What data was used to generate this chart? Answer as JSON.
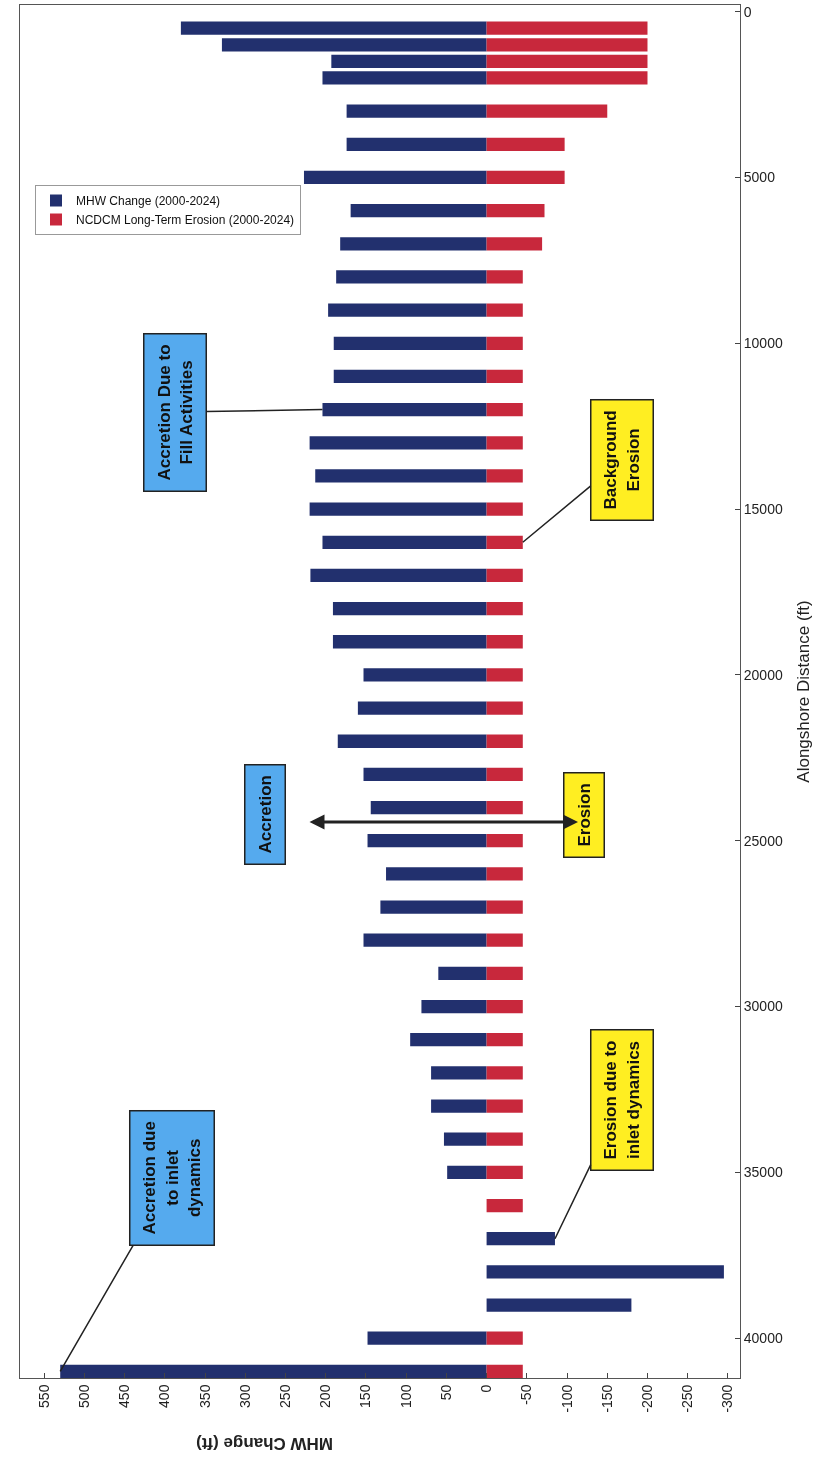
{
  "chart_data": {
    "type": "bar",
    "orientation": "horizontal",
    "stacked": true,
    "xlabel": "MHW Change (ft)",
    "ylabel": "Alongshore Distance (ft)",
    "x": [
      500,
      1000,
      1500,
      2000,
      3000,
      4000,
      5000,
      6000,
      7000,
      8000,
      9000,
      10000,
      11000,
      12000,
      13000,
      14000,
      15000,
      16000,
      17000,
      18000,
      19000,
      20000,
      21000,
      22000,
      23000,
      24000,
      25000,
      26000,
      27000,
      28000,
      29000,
      30000,
      31000,
      32000,
      33000,
      34000,
      35000,
      36000,
      37000,
      38000,
      39000,
      40000,
      41000
    ],
    "series": [
      {
        "name": "MHW Change (2000-2024)",
        "color": "#22306e",
        "values": [
          380,
          329,
          193,
          204,
          174,
          174,
          227,
          169,
          182,
          187,
          197,
          190,
          190,
          204,
          220,
          213,
          220,
          204,
          219,
          191,
          191,
          153,
          160,
          185,
          153,
          144,
          148,
          125,
          132,
          153,
          60,
          81,
          95,
          69,
          69,
          53,
          49,
          0,
          -85,
          -295,
          -180,
          148,
          530
        ]
      },
      {
        "name": "NCDCM Long-Term Erosion (2000-2024)",
        "color": "#c8283c",
        "values": [
          -200,
          -200,
          -200,
          -200,
          -150,
          -97,
          -97,
          -72,
          -69,
          -45,
          -45,
          -45,
          -45,
          -45,
          -45,
          -45,
          -45,
          -45,
          -45,
          -45,
          -45,
          -45,
          -45,
          -45,
          -45,
          -45,
          -45,
          -45,
          -45,
          -45,
          -45,
          -45,
          -45,
          -45,
          -45,
          -45,
          -45,
          -45,
          null,
          null,
          null,
          -45,
          -45
        ]
      }
    ],
    "xlim": [
      580,
      -315
    ],
    "xticks": [
      550,
      500,
      450,
      400,
      350,
      300,
      250,
      200,
      150,
      100,
      50,
      0,
      -50,
      -100,
      -150,
      -200,
      -250,
      -300
    ],
    "ylim": [
      41200,
      -200
    ],
    "yticks": [
      0,
      5000,
      10000,
      15000,
      20000,
      25000,
      30000,
      35000,
      40000
    ],
    "legend": "top left",
    "annotations": [
      {
        "text": "Accretion Due to Fill Activities",
        "x": 204,
        "y": 12000
      },
      {
        "text": "Background Erosion",
        "x": -45,
        "y": 16000
      },
      "Accretion",
      "Erosion",
      {
        "text": "Accretion due to inlet dynamics",
        "x": 530,
        "y": 41000
      },
      {
        "text": "Erosion due to inlet dynamics",
        "x": -85,
        "y": 37000
      }
    ]
  }
}
